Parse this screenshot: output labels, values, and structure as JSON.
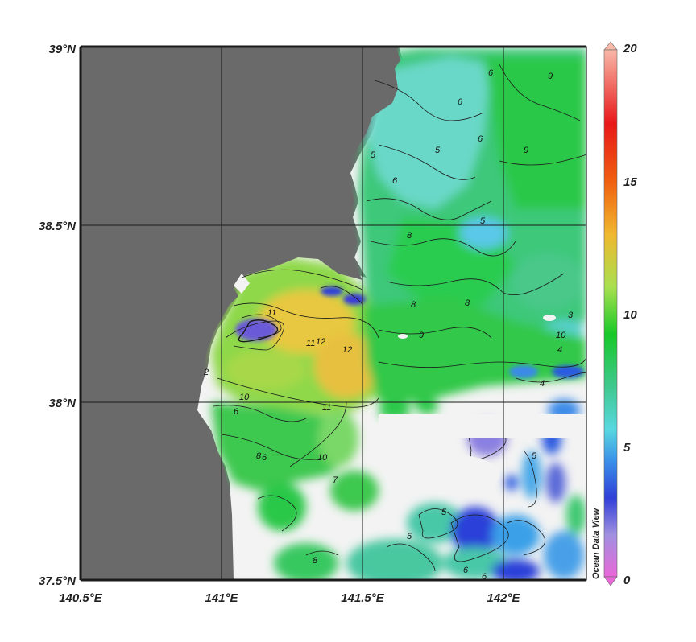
{
  "map": {
    "lat_labels": [
      "39°N",
      "38.5°N",
      "38°N",
      "37.5°N"
    ],
    "lon_labels": [
      "140.5°E",
      "141°E",
      "141.5°E",
      "142°E"
    ],
    "contour_labels": [
      "11",
      "12",
      "12",
      "11",
      "10",
      "10",
      "11",
      "6",
      "8",
      "2",
      "5",
      "6",
      "9",
      "6",
      "5",
      "8",
      "8",
      "5",
      "8",
      "9",
      "9",
      "6",
      "6",
      "5",
      "4",
      "7",
      "10",
      "5",
      "6",
      "8",
      "5",
      "3",
      "6",
      "6",
      "4"
    ],
    "colors": {
      "land": "#6a6a6a",
      "no_data": "#f3f3f3",
      "grid": "#1a1a1a"
    }
  },
  "colorbar": {
    "labels": [
      "20",
      "15",
      "10",
      "5",
      "0"
    ],
    "min": 0,
    "max": 20,
    "watermark": "Ocean Data View",
    "stops": [
      "#e060d0",
      "#9a8ae0",
      "#2a3ad8",
      "#3aa0e8",
      "#5ad8c8",
      "#3cc86a",
      "#18c820",
      "#b8e048",
      "#f8b028",
      "#f86818",
      "#e81818",
      "#f8c0a0"
    ]
  }
}
